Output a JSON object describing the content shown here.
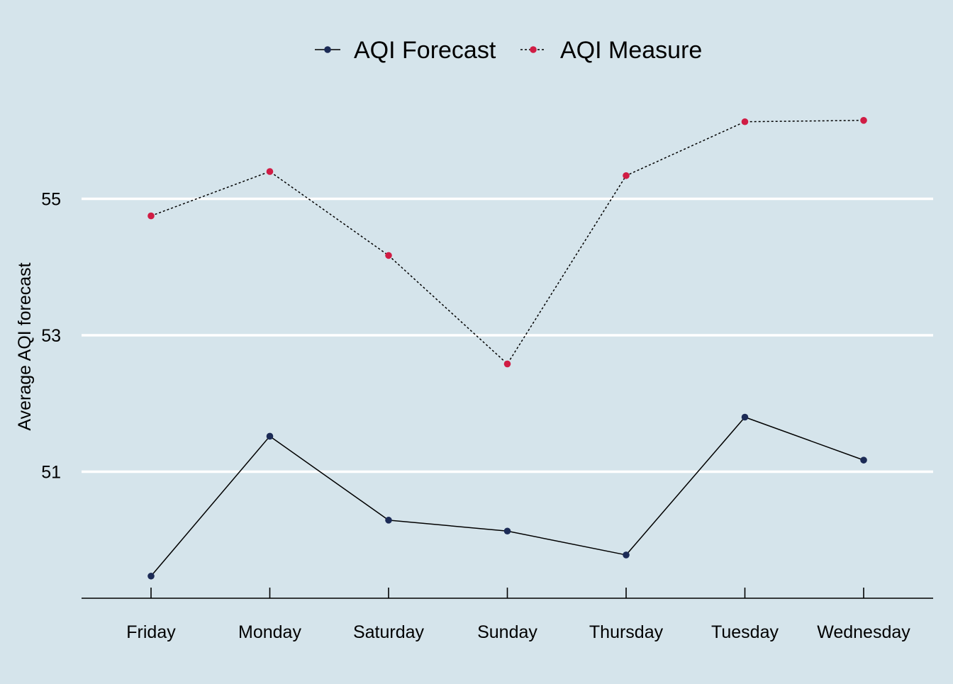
{
  "chart_data": {
    "type": "line",
    "title": "",
    "xlabel": "",
    "ylabel": "Average AQI forecast",
    "categories": [
      "Friday",
      "Monday",
      "Saturday",
      "Sunday",
      "Thursday",
      "Tuesday",
      "Wednesday"
    ],
    "y_ticks": [
      51,
      53,
      55
    ],
    "ylim": [
      49.15,
      56.95
    ],
    "grid": "horizontal major lines only",
    "legend_position": "top",
    "series": [
      {
        "name": "AQI Forecast",
        "values": [
          49.47,
          51.52,
          50.29,
          50.13,
          49.78,
          51.8,
          51.17
        ],
        "line_style": "solid",
        "line_color": "#000000",
        "point_color": "#1c2b56"
      },
      {
        "name": "AQI Measure",
        "values": [
          54.75,
          55.4,
          54.17,
          52.58,
          55.34,
          56.13,
          56.15
        ],
        "line_style": "dotted",
        "line_color": "#000000",
        "point_color": "#d01c44"
      }
    ],
    "background_color": "#d5e4eb",
    "grid_color": "#ffffff"
  }
}
